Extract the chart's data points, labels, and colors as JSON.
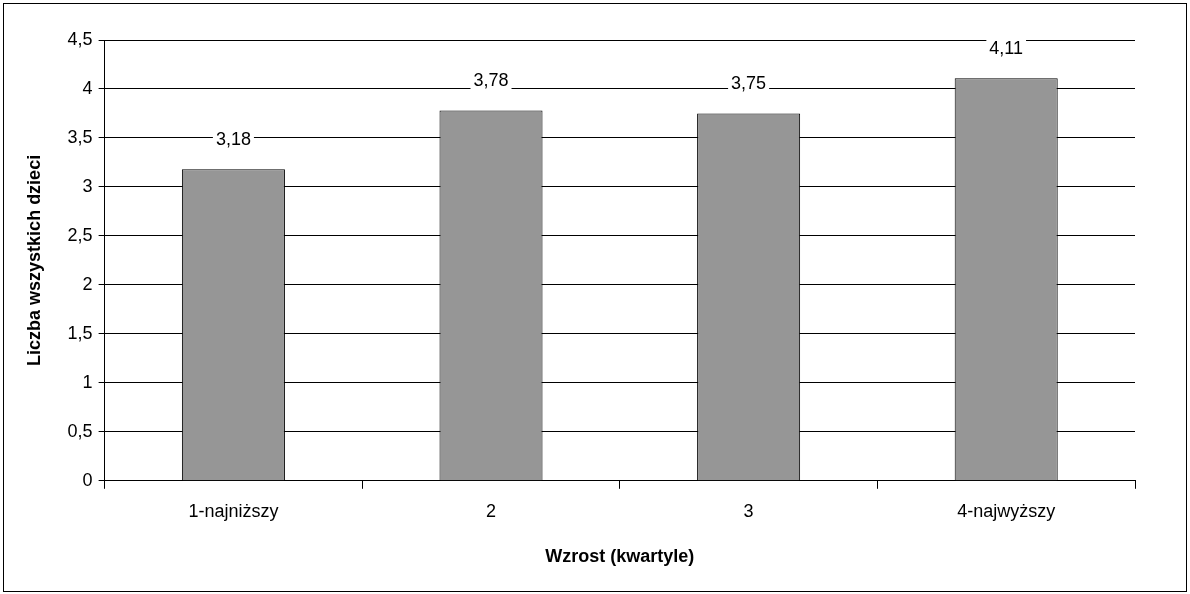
{
  "chart_data": {
    "type": "bar",
    "xlabel": "Wzrost (kwartyle)",
    "ylabel": "Liczba wszystkich dzieci",
    "categories": [
      "1-najniższy",
      "2",
      "3",
      "4-najwyższy"
    ],
    "values": [
      3.18,
      3.78,
      3.75,
      4.11
    ],
    "value_labels": [
      "3,18",
      "3,78",
      "3,75",
      "4,11"
    ],
    "color": "#969696",
    "ylim": [
      0,
      4.5
    ],
    "yticks": [
      0,
      {
        "value": 0.5,
        "label": "0,5"
      },
      1,
      {
        "value": 1.5,
        "label": "1,5"
      },
      2,
      {
        "value": 2.5,
        "label": "2,5"
      },
      3,
      {
        "value": 3.5,
        "label": "3,5"
      },
      4,
      {
        "value": 4.5,
        "label": "4,5"
      }
    ],
    "grid": "y",
    "legend": false
  }
}
